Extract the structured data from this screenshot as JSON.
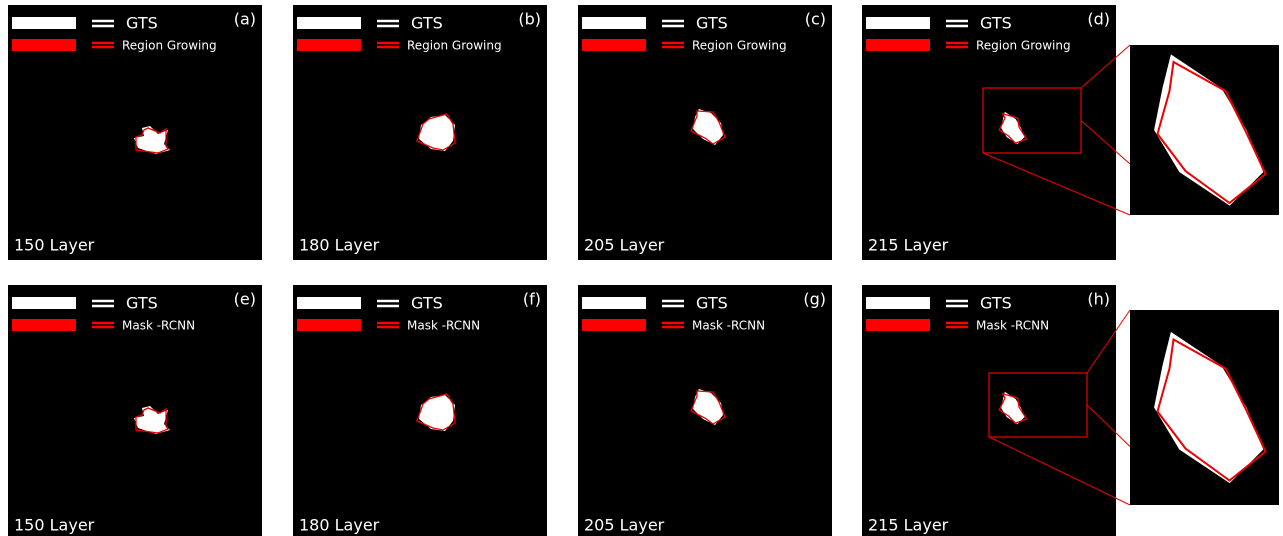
{
  "panels": [
    {
      "label": "(a)",
      "legend": [
        "GTS",
        "Region Growing"
      ],
      "layer": "150 Layer"
    },
    {
      "label": "(b)",
      "legend": [
        "GTS",
        "Region Growing"
      ],
      "layer": "180 Layer"
    },
    {
      "label": "(c)",
      "legend": [
        "GTS",
        "Region Growing"
      ],
      "layer": "205 Layer"
    },
    {
      "label": "(d)",
      "legend": [
        "GTS",
        "Region Growing"
      ],
      "layer": "215 Layer"
    },
    {
      "label": "(e)",
      "legend": [
        "GTS",
        "Mask -RCNN"
      ],
      "layer": "150 Layer"
    },
    {
      "label": "(f)",
      "legend": [
        "GTS",
        "Mask -RCNN"
      ],
      "layer": "180 Layer"
    },
    {
      "label": "(g)",
      "legend": [
        "GTS",
        "Mask -RCNN"
      ],
      "layer": "205 Layer"
    },
    {
      "label": "(h)",
      "legend": [
        "GTS",
        "Mask -RCNN"
      ],
      "layer": "215 Layer"
    }
  ]
}
